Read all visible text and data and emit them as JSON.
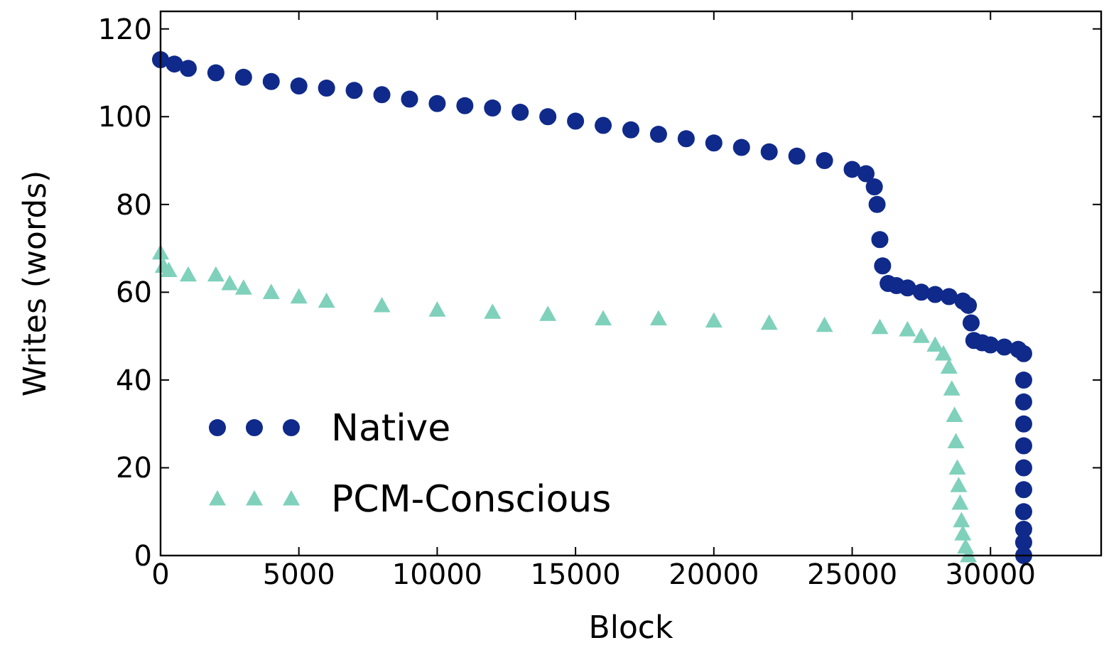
{
  "chart_data": {
    "type": "scatter",
    "xlabel": "Block",
    "ylabel": "Writes (words)",
    "xlim": [
      0,
      34000
    ],
    "ylim": [
      0,
      124
    ],
    "xticks": [
      0,
      5000,
      10000,
      15000,
      20000,
      25000,
      30000
    ],
    "yticks": [
      0,
      20,
      40,
      60,
      80,
      100,
      120
    ],
    "legend": "bottom left",
    "grid": false,
    "series": [
      {
        "name": "Native",
        "color": "#0f2a8a",
        "marker": "circle",
        "x": [
          0,
          500,
          1000,
          2000,
          3000,
          4000,
          5000,
          6000,
          7000,
          8000,
          9000,
          10000,
          11000,
          12000,
          13000,
          14000,
          15000,
          16000,
          17000,
          18000,
          19000,
          20000,
          21000,
          22000,
          23000,
          24000,
          25000,
          25500,
          25800,
          25900,
          26000,
          26100,
          26300,
          26600,
          27000,
          27500,
          28000,
          28500,
          29000,
          29200,
          29300,
          29400,
          29700,
          30000,
          30500,
          31000,
          31200,
          31200,
          31200,
          31200,
          31200,
          31200,
          31200,
          31200,
          31200,
          31200,
          31200
        ],
        "values": [
          113,
          112,
          111,
          110,
          109,
          108,
          107,
          106.5,
          106,
          105,
          104,
          103,
          102.5,
          102,
          101,
          100,
          99,
          98,
          97,
          96,
          95,
          94,
          93,
          92,
          91,
          90,
          88,
          87,
          84,
          80,
          72,
          66,
          62,
          61.5,
          61,
          60,
          59.5,
          59,
          58,
          57,
          53,
          49,
          48.5,
          48,
          47.5,
          47,
          46,
          40,
          35,
          30,
          25,
          20,
          15,
          10,
          6,
          3,
          0
        ]
      },
      {
        "name": "PCM-Conscious",
        "color": "#7fd1bb",
        "marker": "triangle",
        "x": [
          0,
          100,
          300,
          1000,
          2000,
          2500,
          3000,
          4000,
          5000,
          6000,
          8000,
          10000,
          12000,
          14000,
          16000,
          18000,
          20000,
          22000,
          24000,
          26000,
          27000,
          27500,
          28000,
          28300,
          28500,
          28600,
          28700,
          28750,
          28800,
          28850,
          28900,
          28950,
          29000,
          29100,
          29200
        ],
        "values": [
          69,
          66,
          65,
          64,
          64,
          62,
          61,
          60,
          59,
          58,
          57,
          56,
          55.5,
          55,
          54,
          54,
          53.5,
          53,
          52.5,
          52,
          51.5,
          50,
          48,
          46,
          43,
          38,
          32,
          26,
          20,
          16,
          12,
          8,
          5,
          2,
          0
        ]
      }
    ]
  }
}
